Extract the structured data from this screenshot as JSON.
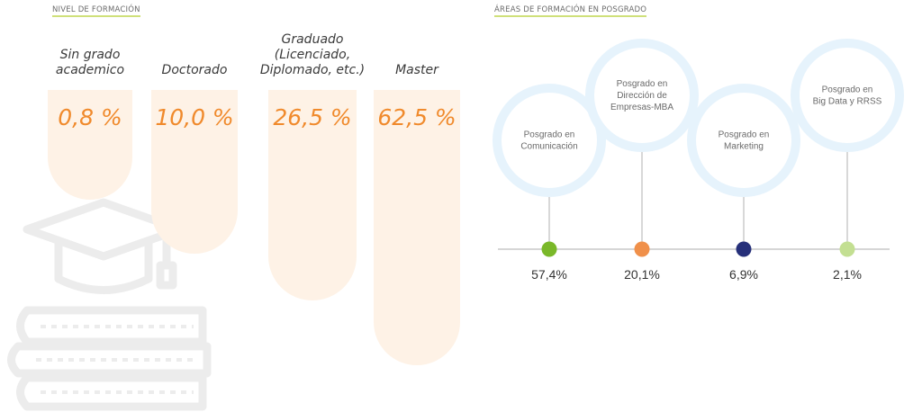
{
  "left_title": "NIVEL DE FORMACIÓN",
  "right_title": "ÁREAS DE FORMACIÓN EN POSGRADO",
  "colors": {
    "bar_fill": "#fef2e6",
    "pct_text": "#f08a2c",
    "circle_ring": "#e6f3fc",
    "title_underline": "#cfe07a"
  },
  "chart_data": [
    {
      "type": "bar",
      "title": "NIVEL DE FORMACIÓN",
      "categories": [
        [
          "Sin grado",
          "academico"
        ],
        [
          "Doctorado"
        ],
        [
          "Graduado",
          "(Licenciado,",
          "Diplomado, etc.)"
        ],
        [
          "Master"
        ]
      ],
      "values": [
        0.8,
        10.0,
        26.5,
        62.5
      ],
      "labels": [
        "0,8 %",
        "10,0 %",
        "26,5 %",
        "62,5 %"
      ],
      "unit": "%"
    },
    {
      "type": "scatter",
      "title": "ÁREAS DE FORMACIÓN EN POSGRADO",
      "categories": [
        [
          "Posgrado en",
          "Comunicación"
        ],
        [
          "Posgrado en",
          "Dirección de",
          "Empresas-MBA"
        ],
        [
          "Posgrado en",
          "Marketing"
        ],
        [
          "Posgrado en",
          "Big Data y RRSS"
        ]
      ],
      "values": [
        57.4,
        20.1,
        6.9,
        2.1
      ],
      "labels": [
        "57,4%",
        "20,1%",
        "6,9%",
        "2,1%"
      ],
      "dot_colors": [
        "#7ab829",
        "#f0904a",
        "#26307a",
        "#c3df92"
      ],
      "unit": "%"
    }
  ]
}
